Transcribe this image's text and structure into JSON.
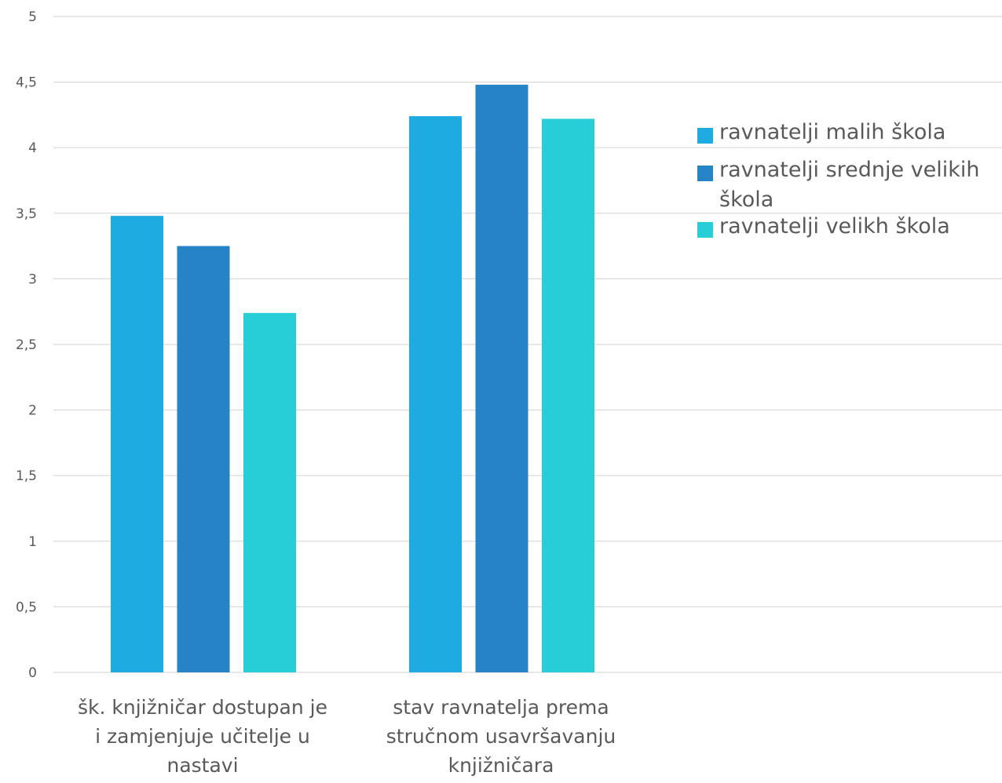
{
  "chart_data": {
    "type": "bar",
    "title": "",
    "xlabel": "",
    "ylabel": "",
    "categories": [
      [
        "šk. knjižničar dostupan je",
        "i zamjenjuje učitelje u",
        "nastavi"
      ],
      [
        "stav ravnatelja prema",
        "stručnom usavršavanju",
        "knjižničara"
      ]
    ],
    "series": [
      {
        "name": "ravnatelji malih škola",
        "color": "#1eabe2",
        "values": [
          3.48,
          4.24
        ]
      },
      {
        "name": "ravnatelji srednje velikih škola",
        "color": "#2683c6",
        "values": [
          3.25,
          4.48
        ]
      },
      {
        "name": "ravnatelji velikh škola",
        "color": "#27ced7",
        "values": [
          2.74,
          4.22
        ]
      }
    ],
    "ylim": [
      0,
      5
    ],
    "yticks": [
      "0",
      "0,5",
      "1",
      "1,5",
      "2",
      "2,5",
      "3",
      "3,5",
      "4",
      "4,5",
      "5"
    ],
    "grid": true,
    "legend_position": "right"
  },
  "legend": {
    "items": [
      {
        "label": "ravnatelji malih škola",
        "color": "#1eabe2"
      },
      {
        "label": "ravnatelji srednje velikih škola",
        "color": "#2683c6"
      },
      {
        "label": "ravnatelji velikh škola",
        "color": "#27ced7"
      }
    ]
  }
}
